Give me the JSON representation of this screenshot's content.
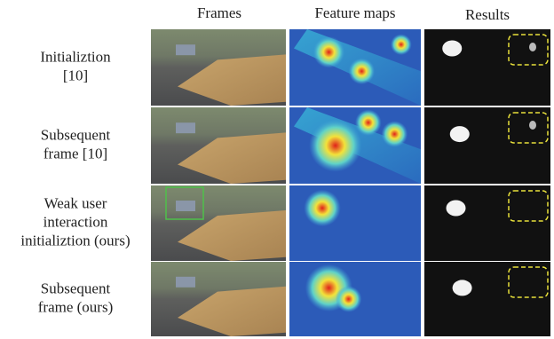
{
  "column_headers": [
    "Frames",
    "Feature maps",
    "Results"
  ],
  "rows": [
    {
      "label_lines": [
        "Initializtion",
        "[10]"
      ]
    },
    {
      "label_lines": [
        "Subsequent",
        "frame [10]"
      ]
    },
    {
      "label_lines": [
        "Weak user",
        "interaction",
        "initializtion (ours)"
      ]
    },
    {
      "label_lines": [
        "Subsequent",
        "frame (ours)"
      ]
    }
  ]
}
